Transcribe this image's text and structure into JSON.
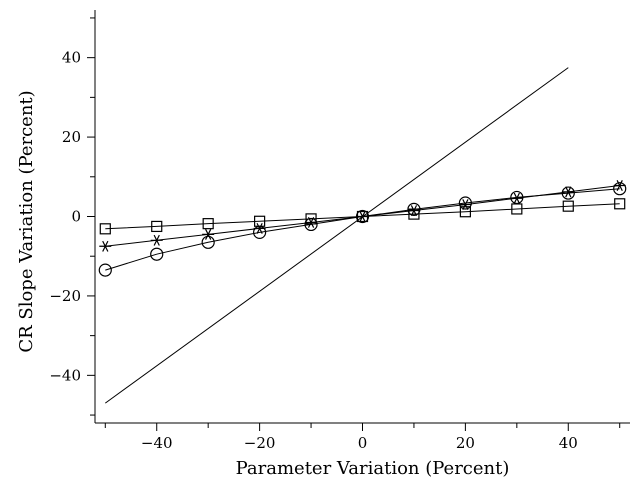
{
  "chart_data": {
    "type": "line",
    "title": "",
    "xlabel": "Parameter Variation (Percent)",
    "ylabel": "CR Slope Variation (Percent)",
    "xlim": [
      -52,
      52
    ],
    "ylim": [
      -52,
      52
    ],
    "x_ticks": [
      -40,
      -20,
      0,
      20,
      40
    ],
    "y_ticks": [
      -40,
      -20,
      0,
      20,
      40
    ],
    "x_tick_labels": [
      "−40",
      "−20",
      "0",
      "20",
      "40"
    ],
    "y_tick_labels": [
      "−40",
      "−20",
      "0",
      "20",
      "40"
    ],
    "grid": false,
    "legend": "none",
    "series": [
      {
        "marker": "none",
        "x": [
          -50,
          40
        ],
        "y": [
          -47,
          37.5
        ]
      },
      {
        "marker": "square",
        "x": [
          -50,
          -40,
          -30,
          -20,
          -10,
          0,
          10,
          20,
          30,
          40,
          50
        ],
        "y": [
          -3.1,
          -2.5,
          -1.8,
          -1.2,
          -0.6,
          0,
          0.6,
          1.2,
          1.9,
          2.6,
          3.2
        ]
      },
      {
        "marker": "asterisk",
        "x": [
          -50,
          -40,
          -30,
          -20,
          -10,
          0,
          10,
          20,
          30,
          40,
          50
        ],
        "y": [
          -7.5,
          -6.0,
          -4.5,
          -3.0,
          -1.5,
          0,
          1.5,
          3.0,
          4.6,
          6.2,
          7.8
        ]
      },
      {
        "marker": "circle",
        "x": [
          -50,
          -40,
          -30,
          -20,
          -10,
          0,
          10,
          20,
          30,
          40,
          50
        ],
        "y": [
          -13.5,
          -9.5,
          -6.5,
          -4.0,
          -2.0,
          0,
          1.8,
          3.4,
          4.8,
          5.9,
          7.0
        ]
      }
    ]
  }
}
